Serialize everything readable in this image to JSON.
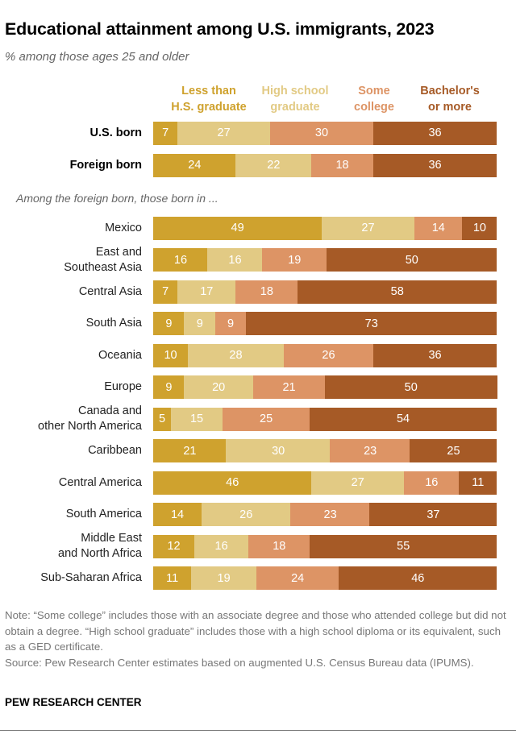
{
  "chart_data": {
    "type": "bar",
    "orientation": "horizontal-stacked-100",
    "title": "Educational attainment among U.S. immigrants, 2023",
    "subtitle": "% among those ages 25 and older",
    "section_label": "Among the foreign born, those born in ...",
    "series": [
      {
        "name": "Less than\nH.S. graduate",
        "color": "#CFA22E"
      },
      {
        "name": "High school\ngraduate",
        "color": "#E2CA84"
      },
      {
        "name": "Some\ncollege",
        "color": "#DD9465"
      },
      {
        "name": "Bachelor's\nor more",
        "color": "#A65A26"
      }
    ],
    "legend_placement": "top",
    "top_rows": [
      {
        "label": "U.S. born",
        "values": [
          7,
          27,
          30,
          36
        ]
      },
      {
        "label": "Foreign born",
        "values": [
          24,
          22,
          18,
          36
        ]
      }
    ],
    "rows": [
      {
        "label": "Mexico",
        "values": [
          49,
          27,
          14,
          10
        ]
      },
      {
        "label": "East and\nSoutheast Asia",
        "values": [
          16,
          16,
          19,
          50
        ]
      },
      {
        "label": "Central Asia",
        "values": [
          7,
          17,
          18,
          58
        ]
      },
      {
        "label": "South Asia",
        "values": [
          9,
          9,
          9,
          73
        ]
      },
      {
        "label": "Oceania",
        "values": [
          10,
          28,
          26,
          36
        ]
      },
      {
        "label": "Europe",
        "values": [
          9,
          20,
          21,
          50
        ]
      },
      {
        "label": "Canada and\nother North America",
        "values": [
          5,
          15,
          25,
          54
        ]
      },
      {
        "label": "Caribbean",
        "values": [
          21,
          30,
          23,
          25
        ]
      },
      {
        "label": "Central America",
        "values": [
          46,
          27,
          16,
          11
        ]
      },
      {
        "label": "South America",
        "values": [
          14,
          26,
          23,
          37
        ]
      },
      {
        "label": "Middle East\nand North Africa",
        "values": [
          12,
          16,
          18,
          55
        ]
      },
      {
        "label": "Sub-Saharan Africa",
        "values": [
          11,
          19,
          24,
          46
        ]
      }
    ],
    "note": "Note: “Some college” includes those with an associate degree and those who attended college but did not obtain a degree. “High school graduate” includes those with a high school diploma or its equivalent, such as a GED certificate.",
    "source": "Source: Pew Research Center estimates based on augmented U.S. Census Bureau data (IPUMS).",
    "brand": "PEW RESEARCH CENTER"
  }
}
